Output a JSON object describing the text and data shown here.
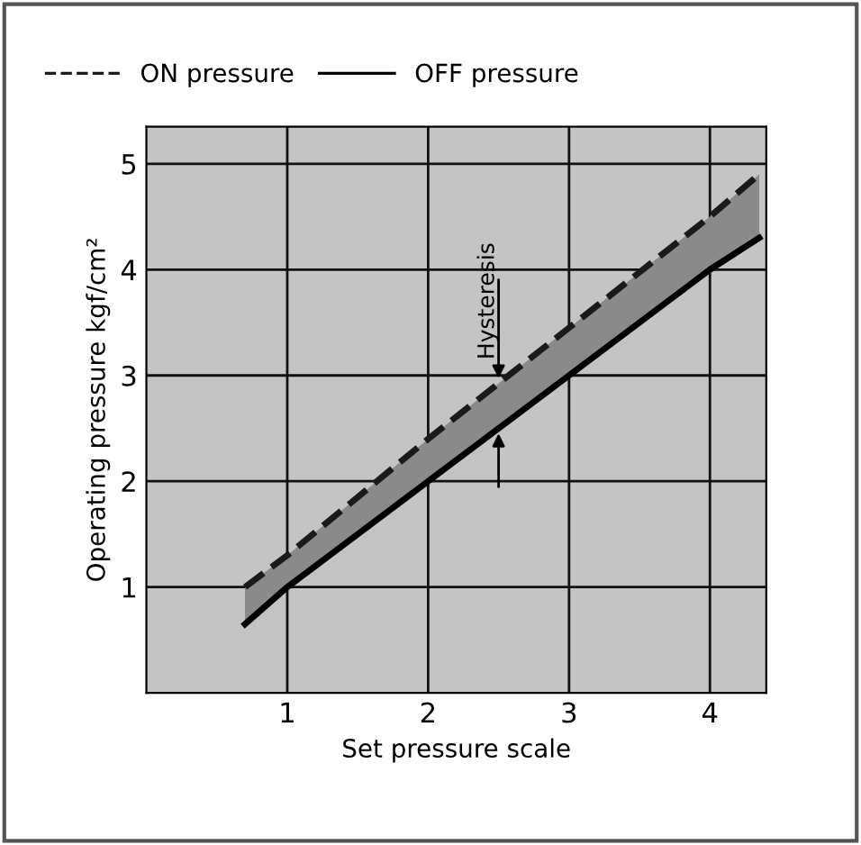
{
  "chart_data": {
    "type": "line",
    "xlabel": "Set pressure scale",
    "ylabel": "Operating pressure kgf/cm²",
    "x": [
      0.7,
      1,
      2,
      3,
      4,
      4.35
    ],
    "series": [
      {
        "name": "ON pressure",
        "color": "#1a1a1a",
        "line_style": "dashed",
        "values": [
          1.0,
          1.3,
          2.4,
          3.45,
          4.5,
          4.9
        ],
        "lower": [
          0.65,
          1.0,
          2.0,
          3.0,
          4.0,
          4.3
        ],
        "upper": [
          1.0,
          1.3,
          2.4,
          3.45,
          4.5,
          4.9
        ]
      },
      {
        "name": "OFF pressure",
        "color": "#000000",
        "line_style": "solid",
        "values": [
          0.65,
          1.0,
          2.0,
          3.0,
          4.0,
          4.3
        ]
      }
    ],
    "xlim": [
      0,
      4.4
    ],
    "xticks": [
      1,
      2,
      3,
      4
    ],
    "ylim": [
      0,
      5.35
    ],
    "yticks": [
      1,
      2,
      3,
      4,
      5
    ],
    "grid": true,
    "legend": "top left",
    "marker": "none",
    "annotations": [
      {
        "text": "Hysteresis",
        "x": 2.5,
        "y": 2.95
      }
    ]
  }
}
